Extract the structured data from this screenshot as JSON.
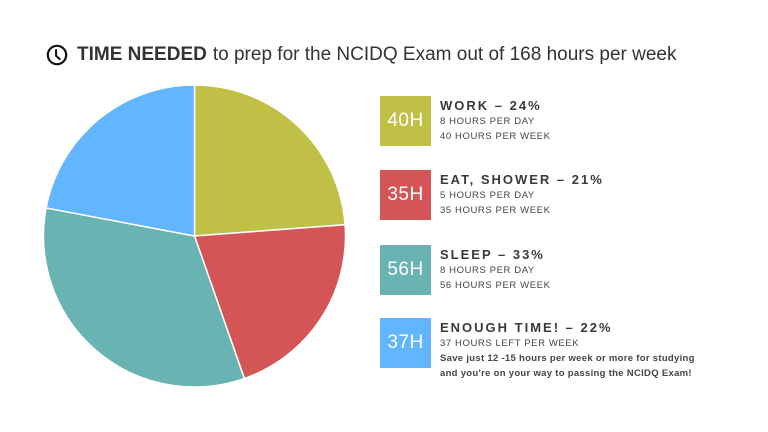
{
  "title": {
    "icon": "clock-icon",
    "bold": "TIME NEEDED",
    "rest": "to prep for the NCIDQ Exam out of 168 hours per week"
  },
  "legend": [
    {
      "box": "40H",
      "color": "#c0bf46",
      "head": "WORK – 24%",
      "lines": [
        "8 HOURS PER DAY",
        "40 HOURS PER WEEK"
      ]
    },
    {
      "box": "35H",
      "color": "#d35555",
      "head": "EAT, SHOWER – 21%",
      "lines": [
        "5 HOURS PER DAY",
        "35 HOURS PER WEEK"
      ]
    },
    {
      "box": "56H",
      "color": "#69b4b2",
      "head": "SLEEP – 33%",
      "lines": [
        "8 HOURS PER DAY",
        "56 HOURS PER WEEK"
      ]
    },
    {
      "box": "37H",
      "color": "#62b5ff",
      "head": "ENOUGH TIME! – 22%",
      "lines": [
        "37 HOURS LEFT PER WEEK"
      ],
      "note": [
        "Save just 12 -15 hours per week or more for studying",
        "and you're on your way to passing the NCIDQ Exam!"
      ]
    }
  ],
  "chart_data": {
    "type": "pie",
    "title": "TIME NEEDED to prep for the NCIDQ Exam out of 168 hours per week",
    "categories": [
      "Work",
      "Eat, Shower",
      "Sleep",
      "Enough Time!"
    ],
    "values": [
      40,
      35,
      56,
      37
    ],
    "percentages": [
      24,
      21,
      33,
      22
    ],
    "colors": [
      "#c0bf46",
      "#d35555",
      "#69b4b2",
      "#62b5ff"
    ],
    "total": 168,
    "legend_position": "right"
  }
}
